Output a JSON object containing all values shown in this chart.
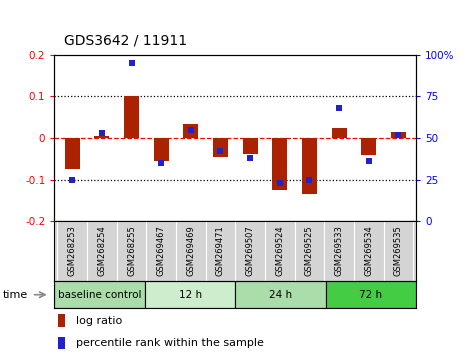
{
  "title": "GDS3642 / 11911",
  "samples": [
    "GSM268253",
    "GSM268254",
    "GSM268255",
    "GSM269467",
    "GSM269469",
    "GSM269471",
    "GSM269507",
    "GSM269524",
    "GSM269525",
    "GSM269533",
    "GSM269534",
    "GSM269535"
  ],
  "log_ratio": [
    -0.075,
    0.005,
    0.1,
    -0.055,
    0.035,
    -0.045,
    -0.038,
    -0.125,
    -0.135,
    0.025,
    -0.04,
    0.015
  ],
  "percentile_rank": [
    25,
    53,
    95,
    35,
    55,
    42,
    38,
    23,
    25,
    68,
    36,
    52
  ],
  "groups": [
    {
      "label": "baseline control",
      "start": 0,
      "end": 3,
      "color": "#aaddaa"
    },
    {
      "label": "12 h",
      "start": 3,
      "end": 6,
      "color": "#cceecc"
    },
    {
      "label": "24 h",
      "start": 6,
      "end": 9,
      "color": "#aaddaa"
    },
    {
      "label": "72 h",
      "start": 9,
      "end": 12,
      "color": "#44cc44"
    }
  ],
  "bar_color": "#aa2200",
  "dot_color": "#2222cc",
  "ylim_left": [
    -0.2,
    0.2
  ],
  "ylim_right": [
    0,
    100
  ],
  "yticks_left": [
    -0.2,
    -0.1,
    0.0,
    0.1,
    0.2
  ],
  "yticks_right": [
    0,
    25,
    50,
    75,
    100
  ],
  "ytick_labels_left": [
    "-0.2",
    "-0.1",
    "0",
    "0.1",
    "0.2"
  ],
  "ytick_labels_right": [
    "0",
    "25",
    "50",
    "75",
    "100%"
  ],
  "hlines": [
    0.1,
    0.0,
    -0.1
  ],
  "hline_styles": [
    "dotted",
    "dashed",
    "dotted"
  ],
  "hline_colors": [
    "black",
    "red",
    "black"
  ]
}
